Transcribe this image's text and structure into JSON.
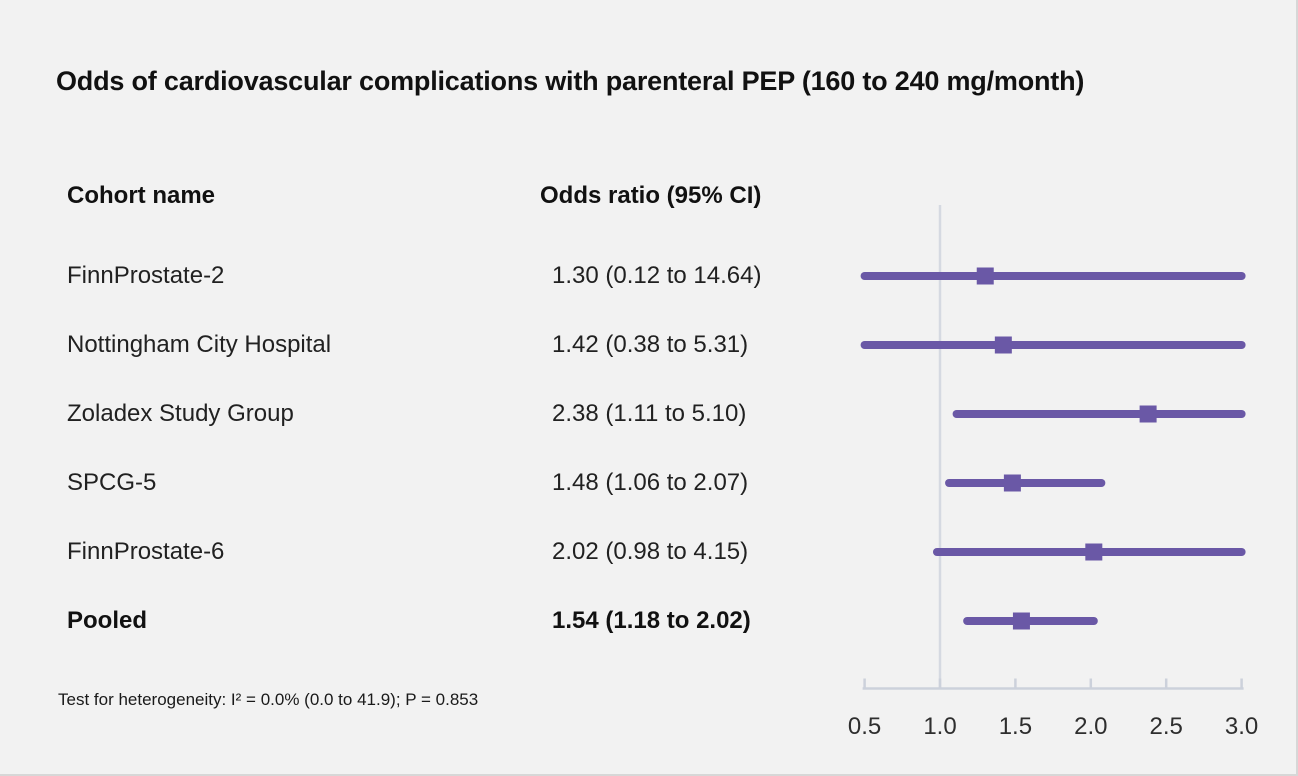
{
  "title": "Odds of cardiovascular complications with parenteral PEP (160 to 240 mg/month)",
  "table": {
    "col1_header": "Cohort name",
    "col2_header": "Odds ratio (95% CI)",
    "rows": [
      {
        "name": "FinnProstate-2",
        "or_text": "1.30 (0.12 to 14.64)",
        "bold": false
      },
      {
        "name": "Nottingham City Hospital",
        "or_text": "1.42 (0.38 to 5.31)",
        "bold": false
      },
      {
        "name": "Zoladex Study Group",
        "or_text": "2.38 (1.11 to 5.10)",
        "bold": false
      },
      {
        "name": "SPCG-5",
        "or_text": "1.48 (1.06 to 2.07)",
        "bold": false
      },
      {
        "name": "FinnProstate-6",
        "or_text": "2.02 (0.98 to 4.15)",
        "bold": false
      },
      {
        "name": "Pooled",
        "or_text": "1.54 (1.18 to 2.02)",
        "bold": true
      }
    ]
  },
  "footnote": "Test for heterogeneity: I² = 0.0% (0.0 to 41.9); P = 0.853",
  "chart_data": {
    "type": "forest",
    "title": "Odds of cardiovascular complications with parenteral PEP (160 to 240 mg/month)",
    "series": [
      {
        "label": "FinnProstate-2",
        "or": 1.3,
        "ci_low": 0.12,
        "ci_high": 14.64,
        "pooled": false
      },
      {
        "label": "Nottingham City Hospital",
        "or": 1.42,
        "ci_low": 0.38,
        "ci_high": 5.31,
        "pooled": false
      },
      {
        "label": "Zoladex Study Group",
        "or": 2.38,
        "ci_low": 1.11,
        "ci_high": 5.1,
        "pooled": false
      },
      {
        "label": "SPCG-5",
        "or": 1.48,
        "ci_low": 1.06,
        "ci_high": 2.07,
        "pooled": false
      },
      {
        "label": "FinnProstate-6",
        "or": 2.02,
        "ci_low": 0.98,
        "ci_high": 4.15,
        "pooled": false
      },
      {
        "label": "Pooled",
        "or": 1.54,
        "ci_low": 1.18,
        "ci_high": 2.02,
        "pooled": true
      }
    ],
    "xlim": [
      0.5,
      3.0
    ],
    "x_ticks": [
      0.5,
      1.0,
      1.5,
      2.0,
      2.5,
      3.0
    ],
    "x_tick_labels": [
      "0.5",
      "1.0",
      "1.5",
      "2.0",
      "2.5",
      "3.0"
    ],
    "reference_line": 1.0,
    "grid": false,
    "legend": "none",
    "colors": {
      "marker": "#6a58a6",
      "ci_line": "#6a58a6",
      "axis": "#ccd1db",
      "reference": "#d5d9e1",
      "tick_label": "#2e2e2e",
      "background": "#f2f2f2"
    }
  }
}
